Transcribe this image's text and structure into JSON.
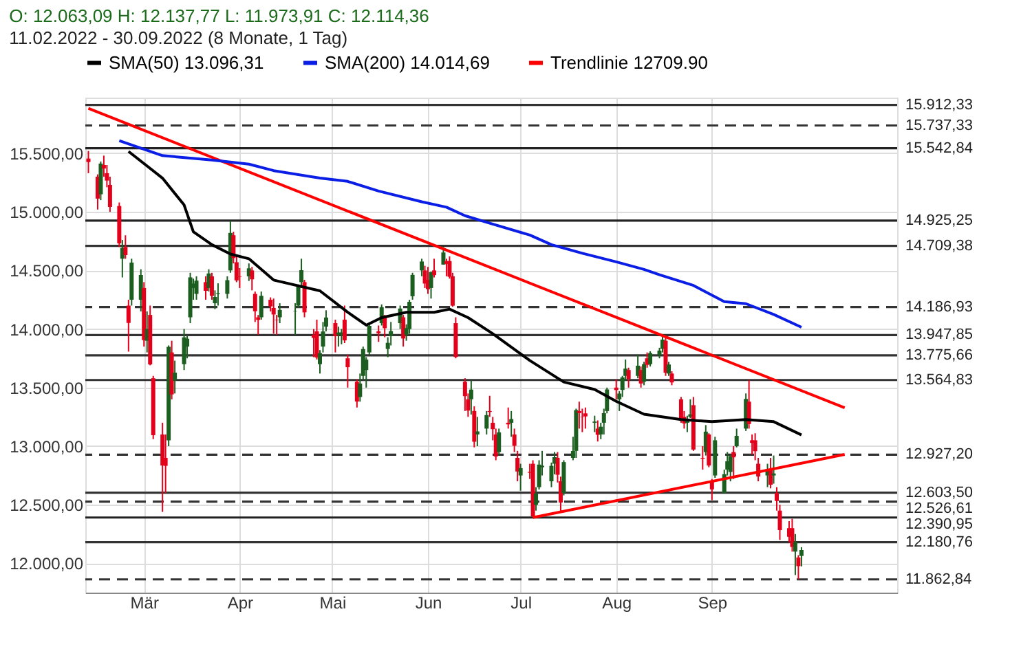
{
  "chart_data": {
    "type": "candlestick",
    "title": "O: 12.063,09  H: 12.137,77  L: 11.973,91  C: 12.114,36",
    "subtitle": "11.02.2022 - 30.09.2022   (8 Monate, 1 Tag)",
    "x": [
      "2022-02-11",
      "2022-02-14",
      "2022-02-15",
      "2022-02-16",
      "2022-02-17",
      "2022-02-18",
      "2022-02-21",
      "2022-02-22",
      "2022-02-23",
      "2022-02-24",
      "2022-02-25",
      "2022-02-28",
      "2022-03-01",
      "2022-03-02",
      "2022-03-03",
      "2022-03-04",
      "2022-03-07",
      "2022-03-08",
      "2022-03-09",
      "2022-03-10",
      "2022-03-11",
      "2022-03-14",
      "2022-03-15",
      "2022-03-16",
      "2022-03-17",
      "2022-03-18",
      "2022-03-21",
      "2022-03-22",
      "2022-03-23",
      "2022-03-24",
      "2022-03-25",
      "2022-03-28",
      "2022-03-29",
      "2022-03-30",
      "2022-03-31",
      "2022-04-01",
      "2022-04-04",
      "2022-04-05",
      "2022-04-06",
      "2022-04-07",
      "2022-04-08",
      "2022-04-11",
      "2022-04-12",
      "2022-04-13",
      "2022-04-14",
      "2022-04-19",
      "2022-04-20",
      "2022-04-21",
      "2022-04-22",
      "2022-04-25",
      "2022-04-26",
      "2022-04-27",
      "2022-04-28",
      "2022-04-29",
      "2022-05-02",
      "2022-05-03",
      "2022-05-04",
      "2022-05-05",
      "2022-05-06",
      "2022-05-09",
      "2022-05-10",
      "2022-05-11",
      "2022-05-12",
      "2022-05-13",
      "2022-05-16",
      "2022-05-17",
      "2022-05-18",
      "2022-05-19",
      "2022-05-20",
      "2022-05-23",
      "2022-05-24",
      "2022-05-25",
      "2022-05-26",
      "2022-05-27",
      "2022-05-30",
      "2022-05-31",
      "2022-06-01",
      "2022-06-02",
      "2022-06-03",
      "2022-06-06",
      "2022-06-07",
      "2022-06-08",
      "2022-06-09",
      "2022-06-10",
      "2022-06-13",
      "2022-06-14",
      "2022-06-15",
      "2022-06-16",
      "2022-06-17",
      "2022-06-20",
      "2022-06-21",
      "2022-06-22",
      "2022-06-23",
      "2022-06-24",
      "2022-06-27",
      "2022-06-28",
      "2022-06-29",
      "2022-06-30",
      "2022-07-01",
      "2022-07-04",
      "2022-07-05",
      "2022-07-06",
      "2022-07-07",
      "2022-07-08",
      "2022-07-11",
      "2022-07-12",
      "2022-07-13",
      "2022-07-14",
      "2022-07-15",
      "2022-07-18",
      "2022-07-19",
      "2022-07-20",
      "2022-07-21",
      "2022-07-22",
      "2022-07-25",
      "2022-07-26",
      "2022-07-27",
      "2022-07-28",
      "2022-07-29",
      "2022-08-01",
      "2022-08-02",
      "2022-08-03",
      "2022-08-04",
      "2022-08-05",
      "2022-08-08",
      "2022-08-09",
      "2022-08-10",
      "2022-08-11",
      "2022-08-12",
      "2022-08-15",
      "2022-08-16",
      "2022-08-17",
      "2022-08-18",
      "2022-08-19",
      "2022-08-22",
      "2022-08-23",
      "2022-08-24",
      "2022-08-25",
      "2022-08-26",
      "2022-08-29",
      "2022-08-30",
      "2022-08-31",
      "2022-09-01",
      "2022-09-02",
      "2022-09-05",
      "2022-09-06",
      "2022-09-07",
      "2022-09-08",
      "2022-09-09",
      "2022-09-12",
      "2022-09-13",
      "2022-09-14",
      "2022-09-15",
      "2022-09-16",
      "2022-09-19",
      "2022-09-20",
      "2022-09-21",
      "2022-09-22",
      "2022-09-23",
      "2022-09-26",
      "2022-09-27",
      "2022-09-28",
      "2022-09-29",
      "2022-09-30"
    ],
    "ohlc": [
      [
        15455,
        15520,
        15330,
        15425
      ],
      [
        15300,
        15320,
        15020,
        15113
      ],
      [
        15150,
        15430,
        15100,
        15412
      ],
      [
        15400,
        15480,
        15300,
        15370
      ],
      [
        15330,
        15400,
        15210,
        15267
      ],
      [
        15230,
        15300,
        15000,
        15042
      ],
      [
        15050,
        15080,
        14700,
        14731
      ],
      [
        14600,
        14760,
        14440,
        14693
      ],
      [
        14700,
        14800,
        14600,
        14631
      ],
      [
        14200,
        14250,
        13807,
        14052
      ],
      [
        14250,
        14600,
        14200,
        14567
      ],
      [
        14250,
        14510,
        14150,
        14461
      ],
      [
        14350,
        14400,
        13850,
        13905
      ],
      [
        13900,
        14150,
        13800,
        14000
      ],
      [
        14120,
        14200,
        13690,
        13698
      ],
      [
        13580,
        13600,
        13060,
        13094
      ],
      [
        13100,
        13200,
        12439,
        12835
      ],
      [
        12900,
        13100,
        12600,
        12832
      ],
      [
        13050,
        13860,
        13000,
        13848
      ],
      [
        13800,
        13900,
        13400,
        13442
      ],
      [
        13560,
        13730,
        13450,
        13628
      ],
      [
        13700,
        14000,
        13650,
        13929
      ],
      [
        13850,
        13950,
        13750,
        13917
      ],
      [
        14100,
        14480,
        14050,
        14441
      ],
      [
        14350,
        14430,
        14250,
        14388
      ],
      [
        14300,
        14450,
        14250,
        14413
      ],
      [
        14400,
        14450,
        14250,
        14326
      ],
      [
        14350,
        14510,
        14320,
        14474
      ],
      [
        14450,
        14480,
        14250,
        14283
      ],
      [
        14220,
        14330,
        14170,
        14273
      ],
      [
        14300,
        14390,
        14200,
        14306
      ],
      [
        14300,
        14450,
        14260,
        14417
      ],
      [
        14500,
        14925,
        14480,
        14820
      ],
      [
        14800,
        14830,
        14560,
        14606
      ],
      [
        14570,
        14630,
        14400,
        14415
      ],
      [
        14450,
        14520,
        14350,
        14446
      ],
      [
        14450,
        14560,
        14410,
        14518
      ],
      [
        14500,
        14530,
        14330,
        14424
      ],
      [
        14300,
        14320,
        14060,
        14152
      ],
      [
        14100,
        14120,
        13950,
        14078
      ],
      [
        14100,
        14320,
        14080,
        14284
      ],
      [
        14250,
        14270,
        14150,
        14193
      ],
      [
        14180,
        14260,
        13960,
        14124
      ],
      [
        14080,
        14120,
        13950,
        14076
      ],
      [
        14100,
        14220,
        14050,
        14163
      ],
      [
        14150,
        14220,
        13950,
        14153
      ],
      [
        14200,
        14380,
        14180,
        14362
      ],
      [
        14400,
        14600,
        14350,
        14502
      ],
      [
        14400,
        14420,
        14100,
        14142
      ],
      [
        13950,
        14000,
        13760,
        13924
      ],
      [
        13980,
        14080,
        13740,
        13757
      ],
      [
        13700,
        13820,
        13620,
        13794
      ],
      [
        13850,
        14060,
        13800,
        13979
      ],
      [
        14020,
        14160,
        13980,
        14098
      ],
      [
        14050,
        14080,
        13800,
        13939
      ],
      [
        13950,
        14020,
        13850,
        13970
      ],
      [
        13950,
        14000,
        13870,
        13971
      ],
      [
        14080,
        14200,
        13880,
        13903
      ],
      [
        13750,
        13780,
        13500,
        13674
      ],
      [
        13550,
        13570,
        13330,
        13381
      ],
      [
        13420,
        13620,
        13380,
        13535
      ],
      [
        13600,
        13850,
        13570,
        13829
      ],
      [
        13650,
        13760,
        13500,
        13739
      ],
      [
        13800,
        14050,
        13780,
        14027
      ],
      [
        13980,
        14030,
        13890,
        13964
      ],
      [
        14050,
        14210,
        14030,
        14186
      ],
      [
        14100,
        14120,
        13930,
        14007
      ],
      [
        13830,
        13930,
        13760,
        13882
      ],
      [
        13940,
        14060,
        13860,
        13982
      ],
      [
        14050,
        14200,
        14000,
        14175
      ],
      [
        14100,
        14120,
        13850,
        13919
      ],
      [
        13950,
        14040,
        13900,
        14008
      ],
      [
        14000,
        14250,
        13960,
        14232
      ],
      [
        14280,
        14480,
        14250,
        14462
      ],
      [
        14500,
        14600,
        14450,
        14576
      ],
      [
        14500,
        14540,
        14350,
        14388
      ],
      [
        14420,
        14530,
        14300,
        14340
      ],
      [
        14350,
        14490,
        14260,
        14485
      ],
      [
        14500,
        14600,
        14440,
        14460
      ],
      [
        14550,
        14700,
        14550,
        14653
      ],
      [
        14580,
        14600,
        14450,
        14556
      ],
      [
        14580,
        14620,
        14430,
        14446
      ],
      [
        14450,
        14480,
        14190,
        14199
      ],
      [
        14050,
        14100,
        13750,
        13761
      ],
      [
        13550,
        13580,
        13300,
        13427
      ],
      [
        13400,
        13450,
        13250,
        13304
      ],
      [
        13400,
        13560,
        13270,
        13483
      ],
      [
        13300,
        13340,
        12990,
        13038
      ],
      [
        13100,
        13250,
        13000,
        13126
      ],
      [
        13150,
        13300,
        13100,
        13265
      ],
      [
        13300,
        13430,
        13250,
        13292
      ],
      [
        13200,
        13250,
        13050,
        13145
      ],
      [
        13100,
        13150,
        12880,
        12912
      ],
      [
        12950,
        13150,
        12920,
        13118
      ],
      [
        13200,
        13330,
        13150,
        13186
      ],
      [
        13200,
        13300,
        13080,
        13231
      ],
      [
        13100,
        13150,
        12950,
        13003
      ],
      [
        12900,
        12960,
        12700,
        12784
      ],
      [
        12750,
        12850,
        12620,
        12813
      ],
      [
        12780,
        12850,
        12720,
        12773
      ],
      [
        12850,
        12880,
        12391,
        12401
      ],
      [
        12500,
        12650,
        12450,
        12595
      ],
      [
        12650,
        12880,
        12630,
        12843
      ],
      [
        12820,
        12960,
        12750,
        12833
      ],
      [
        12700,
        12860,
        12650,
        12832
      ],
      [
        12850,
        12950,
        12760,
        12906
      ],
      [
        12900,
        12950,
        12690,
        12756
      ],
      [
        12700,
        12740,
        12440,
        12519
      ],
      [
        12600,
        12880,
        12580,
        12864
      ],
      [
        12900,
        13080,
        12880,
        12959
      ],
      [
        12960,
        13320,
        12900,
        13308
      ],
      [
        13300,
        13380,
        13150,
        13282
      ],
      [
        13250,
        13320,
        13120,
        13247
      ],
      [
        13280,
        13330,
        13150,
        13254
      ],
      [
        13200,
        13260,
        13120,
        13210
      ],
      [
        13150,
        13220,
        13040,
        13097
      ],
      [
        13100,
        13200,
        13060,
        13166
      ],
      [
        13200,
        13320,
        13100,
        13282
      ],
      [
        13300,
        13500,
        13280,
        13484
      ],
      [
        13500,
        13570,
        13400,
        13479
      ],
      [
        13400,
        13470,
        13300,
        13449
      ],
      [
        13480,
        13600,
        13420,
        13587
      ],
      [
        13600,
        13740,
        13560,
        13662
      ],
      [
        13650,
        13670,
        13500,
        13574
      ],
      [
        13600,
        13780,
        13580,
        13687
      ],
      [
        13650,
        13680,
        13500,
        13535
      ],
      [
        13550,
        13720,
        13520,
        13700
      ],
      [
        13750,
        13800,
        13670,
        13694
      ],
      [
        13700,
        13810,
        13680,
        13795
      ],
      [
        13780,
        13840,
        13750,
        13816
      ],
      [
        13830,
        13948,
        13800,
        13910
      ],
      [
        13900,
        13930,
        13600,
        13627
      ],
      [
        13620,
        13720,
        13600,
        13697
      ],
      [
        13620,
        13640,
        13520,
        13544
      ],
      [
        13400,
        13420,
        13200,
        13230
      ],
      [
        13250,
        13300,
        13150,
        13194
      ],
      [
        13200,
        13260,
        13120,
        13221
      ],
      [
        13250,
        13400,
        13240,
        13272
      ],
      [
        13350,
        13420,
        12960,
        12971
      ],
      [
        12900,
        13000,
        12800,
        12893
      ],
      [
        12950,
        13180,
        12920,
        13124
      ],
      [
        13100,
        13110,
        12820,
        12835
      ],
      [
        12700,
        12720,
        12540,
        12631
      ],
      [
        12750,
        13080,
        12730,
        13050
      ],
      [
        12600,
        12800,
        12600,
        12761
      ],
      [
        12800,
        12950,
        12750,
        12871
      ],
      [
        12780,
        12930,
        12700,
        12916
      ],
      [
        12950,
        13000,
        12720,
        12905
      ],
      [
        13000,
        13150,
        12990,
        13088
      ],
      [
        13150,
        13450,
        13130,
        13403
      ],
      [
        13380,
        13565,
        13150,
        13189
      ],
      [
        13050,
        13100,
        12930,
        13028
      ],
      [
        13050,
        13110,
        12880,
        12957
      ],
      [
        12850,
        12900,
        12700,
        12741
      ],
      [
        12750,
        12850,
        12650,
        12803
      ],
      [
        12800,
        12900,
        12640,
        12671
      ],
      [
        12750,
        12920,
        12680,
        12767
      ],
      [
        12600,
        12650,
        12450,
        12532
      ],
      [
        12450,
        12500,
        12200,
        12284
      ],
      [
        12300,
        12360,
        12180,
        12227
      ],
      [
        12300,
        12380,
        12100,
        12140
      ],
      [
        12100,
        12250,
        11900,
        12183
      ],
      [
        12050,
        12070,
        11863,
        11976
      ],
      [
        12063,
        12138,
        11974,
        12114
      ]
    ],
    "colors": [
      "#e3001b",
      "#e3001b",
      "#1b5e20",
      "#e3001b",
      "#e3001b",
      "#e3001b",
      "#e3001b",
      "#1b5e20",
      "#e3001b",
      "#e3001b",
      "#1b5e20",
      "#1b5e20",
      "#e3001b",
      "#1b5e20",
      "#e3001b",
      "#e3001b",
      "#e3001b",
      "#e3001b",
      "#1b5e20",
      "#e3001b",
      "#1b5e20",
      "#1b5e20",
      "#1b5e20",
      "#1b5e20",
      "#1b5e20",
      "#1b5e20",
      "#e3001b",
      "#1b5e20",
      "#e3001b",
      "#1b5e20",
      "#1b5e20",
      "#1b5e20",
      "#1b5e20",
      "#e3001b",
      "#e3001b",
      "#e3001b",
      "#1b5e20",
      "#e3001b",
      "#e3001b",
      "#e3001b",
      "#1b5e20",
      "#e3001b",
      "#e3001b",
      "#e3001b",
      "#1b5e20",
      "#1b5e20",
      "#1b5e20",
      "#1b5e20",
      "#e3001b",
      "#e3001b",
      "#e3001b",
      "#1b5e20",
      "#1b5e20",
      "#1b5e20",
      "#e3001b",
      "#1b5e20",
      "#1b5e20",
      "#e3001b",
      "#e3001b",
      "#e3001b",
      "#1b5e20",
      "#1b5e20",
      "#1b5e20",
      "#1b5e20",
      "#e3001b",
      "#1b5e20",
      "#e3001b",
      "#1b5e20",
      "#1b5e20",
      "#1b5e20",
      "#e3001b",
      "#1b5e20",
      "#1b5e20",
      "#1b5e20",
      "#1b5e20",
      "#e3001b",
      "#e3001b",
      "#1b5e20",
      "#e3001b",
      "#1b5e20",
      "#e3001b",
      "#e3001b",
      "#e3001b",
      "#e3001b",
      "#e3001b",
      "#e3001b",
      "#1b5e20",
      "#e3001b",
      "#1b5e20",
      "#1b5e20",
      "#e3001b",
      "#e3001b",
      "#e3001b",
      "#1b5e20",
      "#e3001b",
      "#1b5e20",
      "#e3001b",
      "#e3001b",
      "#1b5e20",
      "#e3001b",
      "#e3001b",
      "#1b5e20",
      "#1b5e20",
      "#1b5e20",
      "#1b5e20",
      "#1b5e20",
      "#e3001b",
      "#e3001b",
      "#1b5e20",
      "#1b5e20",
      "#1b5e20",
      "#e3001b",
      "#e3001b",
      "#e3001b",
      "#1b5e20",
      "#e3001b",
      "#1b5e20",
      "#1b5e20",
      "#1b5e20",
      "#e3001b",
      "#1b5e20",
      "#1b5e20",
      "#1b5e20",
      "#e3001b",
      "#1b5e20",
      "#e3001b",
      "#1b5e20",
      "#e3001b",
      "#1b5e20",
      "#1b5e20",
      "#1b5e20",
      "#e3001b",
      "#1b5e20",
      "#e3001b",
      "#e3001b",
      "#e3001b",
      "#1b5e20",
      "#1b5e20",
      "#e3001b",
      "#e3001b",
      "#1b5e20",
      "#e3001b",
      "#e3001b",
      "#1b5e20",
      "#1b5e20",
      "#1b5e20",
      "#1b5e20",
      "#e3001b",
      "#1b5e20",
      "#1b5e20",
      "#e3001b",
      "#e3001b",
      "#e3001b",
      "#e3001b",
      "#1b5e20",
      "#e3001b",
      "#1b5e20",
      "#e3001b",
      "#e3001b",
      "#e3001b",
      "#e3001b",
      "#1b5e20",
      "#e3001b",
      "#1b5e20"
    ],
    "series": [
      {
        "name": "SMA(50)  13.096,31",
        "type": "line",
        "color": "#000000",
        "x": [
          "2022-02-24",
          "2022-03-07",
          "2022-03-14",
          "2022-03-17",
          "2022-03-23",
          "2022-03-29",
          "2022-04-04",
          "2022-04-12",
          "2022-04-27",
          "2022-05-06",
          "2022-05-12",
          "2022-05-17",
          "2022-05-25",
          "2022-06-03",
          "2022-06-08",
          "2022-06-14",
          "2022-06-22",
          "2022-07-04",
          "2022-07-15",
          "2022-07-25",
          "2022-08-01",
          "2022-08-10",
          "2022-08-22",
          "2022-09-01",
          "2022-09-12",
          "2022-09-21",
          "2022-09-30"
        ],
        "values": [
          15516,
          15288,
          15059,
          14830,
          14720,
          14640,
          14600,
          14418,
          14326,
          14143,
          14033,
          14097,
          14143,
          14143,
          14170,
          14097,
          13960,
          13731,
          13548,
          13484,
          13383,
          13273,
          13227,
          13209,
          13227,
          13209,
          13096
        ]
      },
      {
        "name": "SMA(200)  14.014,69",
        "type": "line",
        "color": "#0a1ee6",
        "x": [
          "2022-02-21",
          "2022-03-07",
          "2022-03-23",
          "2022-04-04",
          "2022-04-12",
          "2022-04-27",
          "2022-05-06",
          "2022-05-16",
          "2022-05-30",
          "2022-06-07",
          "2022-06-13",
          "2022-06-21",
          "2022-07-04",
          "2022-07-11",
          "2022-07-21",
          "2022-08-01",
          "2022-08-10",
          "2022-08-15",
          "2022-08-26",
          "2022-09-05",
          "2022-09-12",
          "2022-09-21",
          "2022-09-30"
        ],
        "values": [
          15608,
          15480,
          15443,
          15407,
          15352,
          15288,
          15260,
          15178,
          15086,
          15040,
          14967,
          14903,
          14802,
          14720,
          14647,
          14573,
          14509,
          14463,
          14372,
          14234,
          14216,
          14124,
          14015
        ]
      },
      {
        "name": "Trendlinie  12709.90",
        "type": "line",
        "color": "#ff0000",
        "x": [
          "2022-07-05",
          "2022-10-14"
        ],
        "values": [
          12391,
          12929
        ]
      },
      {
        "type": "line",
        "color": "#ff0000",
        "x": [
          "2022-02-11",
          "2022-10-14"
        ],
        "values": [
          15883,
          13328
        ]
      }
    ],
    "xlim": [
      "2022-02-10",
      "2022-10-31"
    ],
    "xticks": [
      {
        "value": "2022-03-01",
        "label": "Mär"
      },
      {
        "value": "2022-04-01",
        "label": "Apr"
      },
      {
        "value": "2022-05-01",
        "label": "Mai"
      },
      {
        "value": "2022-06-01",
        "label": "Jun"
      },
      {
        "value": "2022-07-01",
        "label": "Jul"
      },
      {
        "value": "2022-08-01",
        "label": "Aug"
      },
      {
        "value": "2022-09-01",
        "label": "Sep"
      }
    ],
    "ylim": [
      11750,
      15975
    ],
    "yticks": [
      {
        "value": 12000,
        "label": "12.000,00"
      },
      {
        "value": 12500,
        "label": "12.500,00"
      },
      {
        "value": 13000,
        "label": "13.000,00"
      },
      {
        "value": 13500,
        "label": "13.500,00"
      },
      {
        "value": 14000,
        "label": "14.000,00"
      },
      {
        "value": 14500,
        "label": "14.500,00"
      },
      {
        "value": 15000,
        "label": "15.000,00"
      },
      {
        "value": 15500,
        "label": "15.500,00"
      }
    ],
    "ref_lines": [
      {
        "axis": "y",
        "value": 15912.33,
        "label": "15.912,33",
        "color": "#333333",
        "line_style": "solid"
      },
      {
        "axis": "y",
        "value": 15737.33,
        "label": "15.737,33",
        "color": "#333333",
        "line_style": "dashed"
      },
      {
        "axis": "y",
        "value": 15542.84,
        "label": "15.542,84",
        "color": "#222222",
        "line_style": "solid"
      },
      {
        "axis": "y",
        "value": 14925.25,
        "label": "14.925,25",
        "color": "#222222",
        "line_style": "solid"
      },
      {
        "axis": "y",
        "value": 14709.38,
        "label": "14.709,38",
        "color": "#333333",
        "line_style": "solid"
      },
      {
        "axis": "y",
        "value": 14186.93,
        "label": "14.186,93",
        "color": "#333333",
        "line_style": "dashed"
      },
      {
        "axis": "y",
        "value": 13947.85,
        "label": "13.947,85",
        "color": "#333333",
        "line_style": "solid"
      },
      {
        "axis": "y",
        "value": 13775.66,
        "label": "13.775,66",
        "color": "#333333",
        "line_style": "solid"
      },
      {
        "axis": "y",
        "value": 13564.83,
        "label": "13.564,83",
        "color": "#333333",
        "line_style": "solid"
      },
      {
        "axis": "y",
        "value": 12927.2,
        "label": "12.927,20",
        "color": "#333333",
        "line_style": "dashed"
      },
      {
        "axis": "y",
        "value": 12603.5,
        "label": "12.603,50",
        "color": "#333333",
        "line_style": "solid"
      },
      {
        "axis": "y",
        "value": 12526.61,
        "label": "12.526,61",
        "color": "#333333",
        "line_style": "dashed"
      },
      {
        "axis": "y",
        "value": 12390.95,
        "label": "12.390,95",
        "color": "#222222",
        "line_style": "solid"
      },
      {
        "axis": "y",
        "value": 12180.76,
        "label": "12.180,76",
        "color": "#333333",
        "line_style": "solid"
      },
      {
        "axis": "y",
        "value": 11862.84,
        "label": "11.862,84",
        "color": "#333333",
        "line_style": "dashed"
      }
    ],
    "grid": true,
    "legend": "top"
  }
}
